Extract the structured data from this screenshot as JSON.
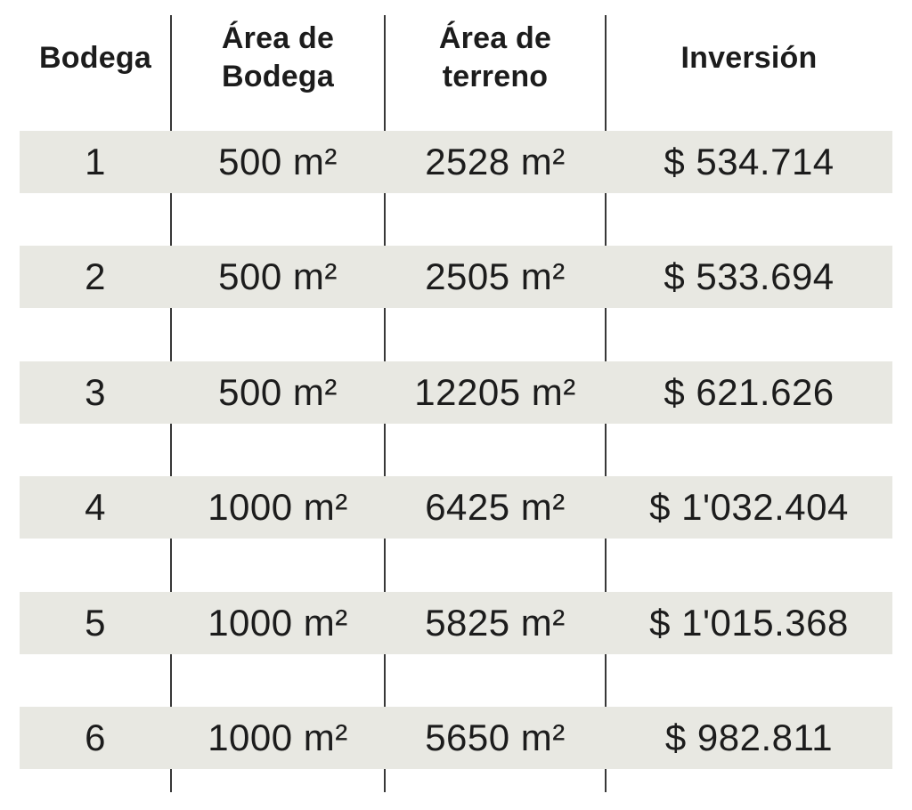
{
  "chart_data": {
    "type": "table",
    "columns": [
      "Bodega",
      "Área de Bodega",
      "Área de terreno",
      "Inversión"
    ],
    "rows": [
      [
        "1",
        "500 m²",
        "2528 m²",
        "$ 534.714"
      ],
      [
        "2",
        "500 m²",
        "2505 m²",
        "$ 533.694"
      ],
      [
        "3",
        "500 m²",
        "12205 m²",
        "$ 621.626"
      ],
      [
        "4",
        "1000 m²",
        "6425 m²",
        "$ 1'032.404"
      ],
      [
        "5",
        "1000 m²",
        "5825 m²",
        "$ 1'015.368"
      ],
      [
        "6",
        "1000 m²",
        "5650 m²",
        "$ 982.811"
      ]
    ],
    "layout_hints": {
      "striped_rows": true,
      "column_dividers": true,
      "header_position": "top"
    }
  },
  "colors": {
    "band": "#e8e8e2",
    "divider": "#383838",
    "text": "#1c1c1c",
    "background": "#ffffff"
  }
}
